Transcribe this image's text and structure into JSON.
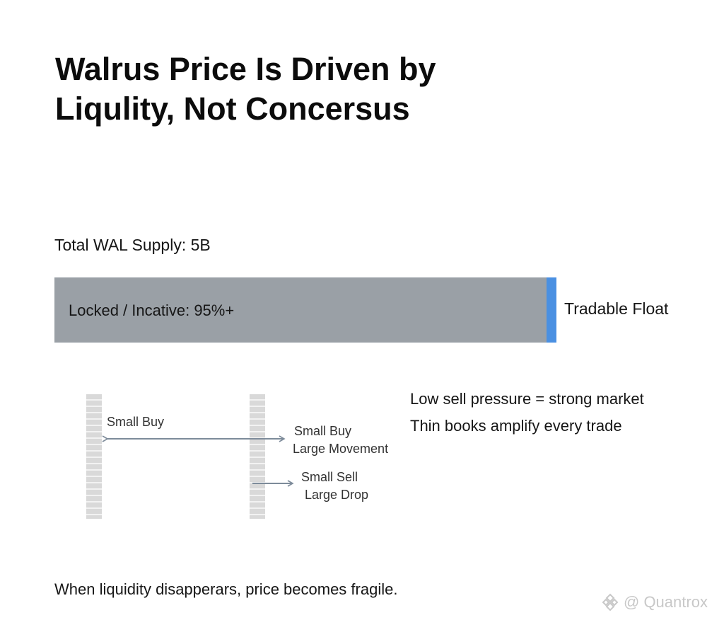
{
  "title": {
    "line1": "Walrus Price Is Driven by",
    "line2": "Liqulity, Not Concersus"
  },
  "supply": {
    "label": "Total WAL Supply: 5B",
    "locked_label": "Locked / Incative: 95%+",
    "float_label": "Tradable Float",
    "locked_fraction": 0.98,
    "colors": {
      "locked": "#9aa0a6",
      "float": "#4a90e2"
    }
  },
  "diagram": {
    "small_buy_left": "Small Buy",
    "buy_line1": "Small Buy",
    "buy_line2": "Large Movement",
    "sell_line1": "Small Sell",
    "sell_line2": "Large Drop"
  },
  "notes": [
    "Low sell pressure = strong market",
    "Thin books amplify every trade"
  ],
  "footer": "When liquidity disapperars, price becomes fragile.",
  "watermark": {
    "icon": "binance-diamond-icon",
    "text": "@ Quantrox"
  }
}
